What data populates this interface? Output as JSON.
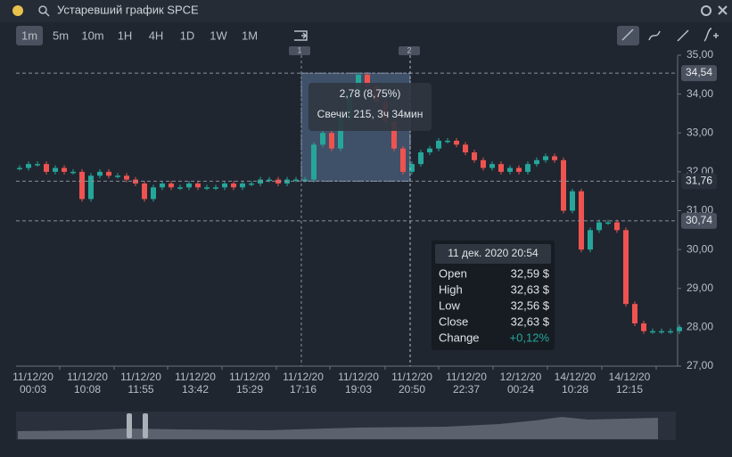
{
  "window": {
    "title": "Устаревший график SPCE"
  },
  "toolbar": {
    "intervals": [
      "1m",
      "5m",
      "10m",
      "1H",
      "4H",
      "1D",
      "1W",
      "1M"
    ],
    "active": 0
  },
  "chart": {
    "type": "candlestick",
    "values": [
      32.1,
      32.2,
      32.2,
      32.0,
      32.1,
      32.0,
      32.0,
      31.3,
      31.9,
      32.0,
      31.9,
      31.9,
      31.8,
      31.7,
      31.3,
      31.6,
      31.7,
      31.6,
      31.6,
      31.7,
      31.6,
      31.6,
      31.6,
      31.7,
      31.6,
      31.7,
      31.7,
      31.8,
      31.8,
      31.7,
      31.8,
      31.8,
      31.8,
      32.7,
      33.0,
      32.6,
      33.4,
      34.0,
      34.5,
      34.2,
      33.8,
      33.3,
      32.6,
      32.0,
      32.2,
      32.5,
      32.6,
      32.8,
      32.8,
      32.7,
      32.5,
      32.3,
      32.1,
      32.2,
      32.0,
      32.1,
      32.0,
      32.2,
      32.3,
      32.4,
      32.3,
      31.0,
      31.5,
      30.0,
      30.5,
      30.7,
      30.7,
      30.5,
      28.6,
      28.1,
      27.9,
      27.9,
      27.9,
      27.9,
      28.0
    ],
    "ylim": [
      27,
      35
    ],
    "yticks": [
      {
        "value": 27,
        "label": "27,00"
      },
      {
        "value": 28,
        "label": "28,00"
      },
      {
        "value": 29,
        "label": "29,00"
      },
      {
        "value": 30,
        "label": "30,00"
      },
      {
        "value": 31,
        "label": "31,00"
      },
      {
        "value": 32,
        "label": "32,00"
      },
      {
        "value": 33,
        "label": "33,00"
      },
      {
        "value": 34,
        "label": "34,00"
      },
      {
        "value": 35,
        "label": "35,00"
      }
    ],
    "xticks": [
      [
        "11/12/20",
        "00:03"
      ],
      [
        "11/12/20",
        "10:08"
      ],
      [
        "11/12/20",
        "11:55"
      ],
      [
        "11/12/20",
        "13:42"
      ],
      [
        "11/12/20",
        "15:29"
      ],
      [
        "11/12/20",
        "17:16"
      ],
      [
        "11/12/20",
        "19:03"
      ],
      [
        "11/12/20",
        "20:50"
      ],
      [
        "11/12/20",
        "22:37"
      ],
      [
        "12/12/20",
        "00:24"
      ],
      [
        "14/12/20",
        "10:28"
      ],
      [
        "14/12/20",
        "12:15"
      ]
    ],
    "price_tags": [
      {
        "value": 34.54,
        "label": "34,54"
      },
      {
        "value": 31.76,
        "label": "31,76"
      },
      {
        "value": 30.74,
        "label": "30,74"
      }
    ],
    "colors": {
      "up": "#26a69a",
      "down": "#ef5350"
    }
  },
  "measure": {
    "change": "2,78 (8,75%)",
    "candles": "Свечи: 215, 3ч 34мин",
    "markers": [
      "1",
      "2"
    ]
  },
  "info": {
    "date": "11 дек. 2020 20:54",
    "rows": [
      [
        "Open",
        "32,59 $"
      ],
      [
        "High",
        "32,63 $"
      ],
      [
        "Low",
        "32,56 $"
      ],
      [
        "Close",
        "32,63 $"
      ],
      [
        "Change",
        "+0,12%"
      ]
    ]
  }
}
